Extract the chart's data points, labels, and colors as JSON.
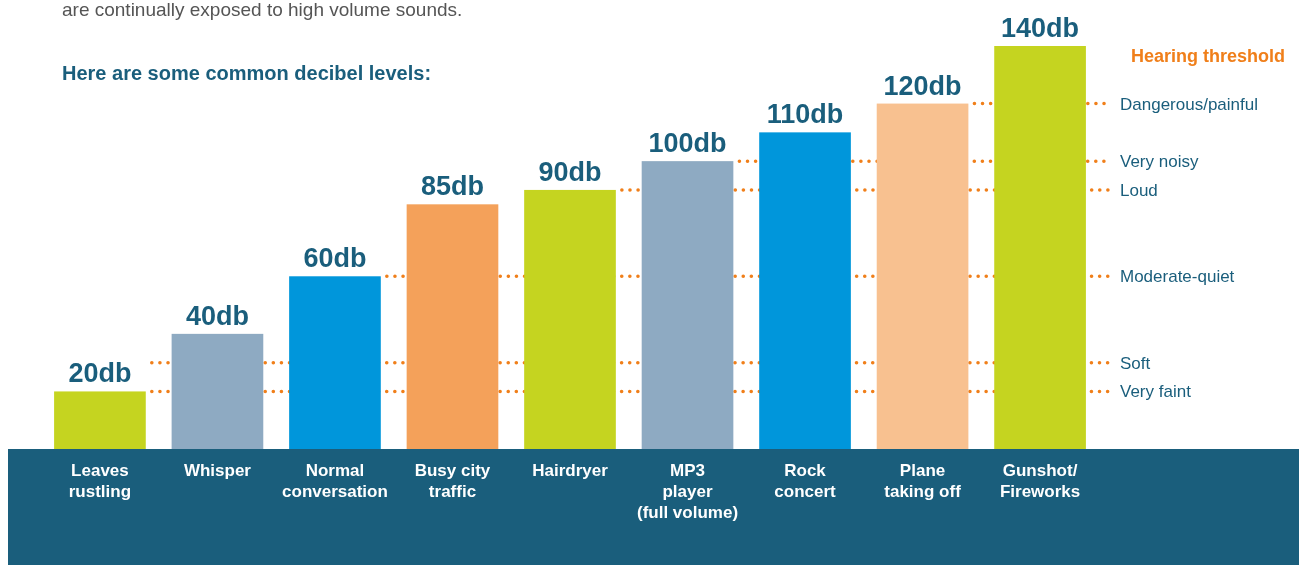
{
  "chart_data": {
    "type": "bar",
    "title": "Here are some common decibel levels:",
    "categories": [
      "Leaves\nrustling",
      "Whisper",
      "Normal\nconversation",
      "Busy city\ntraffic",
      "Hairdryer",
      "MP3\nplayer\n(full volume)",
      "Rock\nconcert",
      "Plane\ntaking off",
      "Gunshot/\nFireworks"
    ],
    "values": [
      20,
      40,
      60,
      85,
      90,
      100,
      110,
      120,
      140
    ],
    "colors": [
      "#c5d420",
      "#8eaac2",
      "#0096db",
      "#f4a15a",
      "#c5d420",
      "#8eaac2",
      "#0096db",
      "#f8c190",
      "#c5d420"
    ],
    "value_labels": [
      "20db",
      "40db",
      "60db",
      "85db",
      "90db",
      "100db",
      "110db",
      "120db",
      "140db"
    ],
    "ylim": [
      0,
      140
    ],
    "tick_labels": "x",
    "ref_lines": [
      {
        "axis": "y",
        "value": 120,
        "label": "Dangerous/painful",
        "color": "#f07f1a",
        "line_style": "dotted"
      },
      {
        "axis": "y",
        "value": 100,
        "label": "Very noisy",
        "color": "#f07f1a",
        "line_style": "dotted"
      },
      {
        "axis": "y",
        "value": 90,
        "label": "Loud",
        "color": "#f07f1a",
        "line_style": "dotted"
      },
      {
        "axis": "y",
        "value": 60,
        "label": "Moderate-quiet",
        "color": "#f07f1a",
        "line_style": "dotted"
      },
      {
        "axis": "y",
        "value": 30,
        "label": "Soft",
        "color": "#f07f1a",
        "line_style": "dotted"
      },
      {
        "axis": "y",
        "value": 20,
        "label": "Very faint",
        "color": "#f07f1a",
        "line_style": "dotted"
      }
    ],
    "annotations": [
      "are continually exposed to high volume sounds.",
      "Hearing threshold"
    ]
  }
}
